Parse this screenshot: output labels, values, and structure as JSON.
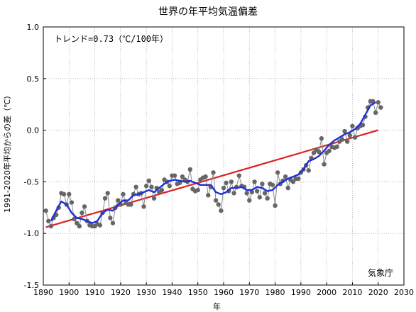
{
  "chart_data": {
    "type": "line",
    "title": "世界の年平均気温偏差",
    "xlabel": "年",
    "ylabel": "1991-2020年平均からの差（℃）",
    "annotation": "トレンド=0.73（℃/100年）",
    "source": "気象庁",
    "xlim": [
      1890,
      2030
    ],
    "ylim": [
      -1.5,
      1.0
    ],
    "xticks": [
      "1890",
      "1900",
      "1910",
      "1920",
      "1930",
      "1940",
      "1950",
      "1960",
      "1970",
      "1980",
      "1990",
      "2000",
      "2010",
      "2020",
      "2030"
    ],
    "yticks": [
      "1.0",
      "0.5",
      "0.0",
      "-0.5",
      "-1.0",
      "-1.5"
    ],
    "grid": true,
    "colors": {
      "annual": "#666666",
      "moving_average": "#1f2fd6",
      "trend": "#e02020"
    },
    "annual": {
      "x": [
        1891,
        1892,
        1893,
        1894,
        1895,
        1896,
        1897,
        1898,
        1899,
        1900,
        1901,
        1902,
        1903,
        1904,
        1905,
        1906,
        1907,
        1908,
        1909,
        1910,
        1911,
        1912,
        1913,
        1914,
        1915,
        1916,
        1917,
        1918,
        1919,
        1920,
        1921,
        1922,
        1923,
        1924,
        1925,
        1926,
        1927,
        1928,
        1929,
        1930,
        1931,
        1932,
        1933,
        1934,
        1935,
        1936,
        1937,
        1938,
        1939,
        1940,
        1941,
        1942,
        1943,
        1944,
        1945,
        1946,
        1947,
        1948,
        1949,
        1950,
        1951,
        1952,
        1953,
        1954,
        1955,
        1956,
        1957,
        1958,
        1959,
        1960,
        1961,
        1962,
        1963,
        1964,
        1965,
        1966,
        1967,
        1968,
        1969,
        1970,
        1971,
        1972,
        1973,
        1974,
        1975,
        1976,
        1977,
        1978,
        1979,
        1980,
        1981,
        1982,
        1983,
        1984,
        1985,
        1986,
        1987,
        1988,
        1989,
        1990,
        1991,
        1992,
        1993,
        1994,
        1995,
        1996,
        1997,
        1998,
        1999,
        2000,
        2001,
        2002,
        2003,
        2004,
        2005,
        2006,
        2007,
        2008,
        2009,
        2010,
        2011,
        2012,
        2013,
        2014,
        2015,
        2016,
        2017,
        2018,
        2019,
        2020,
        2021
      ],
      "y": [
        -0.78,
        -0.88,
        -0.93,
        -0.85,
        -0.82,
        -0.75,
        -0.61,
        -0.62,
        -0.72,
        -0.62,
        -0.7,
        -0.86,
        -0.9,
        -0.93,
        -0.8,
        -0.74,
        -0.88,
        -0.92,
        -0.93,
        -0.93,
        -0.91,
        -0.92,
        -0.8,
        -0.66,
        -0.61,
        -0.85,
        -0.9,
        -0.75,
        -0.68,
        -0.72,
        -0.62,
        -0.7,
        -0.72,
        -0.72,
        -0.62,
        -0.55,
        -0.62,
        -0.61,
        -0.74,
        -0.54,
        -0.49,
        -0.55,
        -0.66,
        -0.56,
        -0.6,
        -0.58,
        -0.48,
        -0.5,
        -0.54,
        -0.44,
        -0.44,
        -0.52,
        -0.51,
        -0.45,
        -0.48,
        -0.5,
        -0.38,
        -0.57,
        -0.59,
        -0.58,
        -0.48,
        -0.46,
        -0.45,
        -0.63,
        -0.55,
        -0.41,
        -0.68,
        -0.72,
        -0.78,
        -0.56,
        -0.51,
        -0.59,
        -0.5,
        -0.61,
        -0.55,
        -0.44,
        -0.54,
        -0.55,
        -0.61,
        -0.68,
        -0.6,
        -0.5,
        -0.59,
        -0.65,
        -0.52,
        -0.61,
        -0.66,
        -0.52,
        -0.53,
        -0.73,
        -0.41,
        -0.52,
        -0.49,
        -0.45,
        -0.56,
        -0.48,
        -0.5,
        -0.47,
        -0.47,
        -0.41,
        -0.38,
        -0.34,
        -0.39,
        -0.27,
        -0.22,
        -0.19,
        -0.21,
        -0.08,
        -0.33,
        -0.22,
        -0.2,
        -0.16,
        -0.17,
        -0.16,
        -0.11,
        -0.09,
        -0.01,
        -0.11,
        -0.05,
        0.04,
        -0.07,
        0.02,
        0.04,
        0.05,
        0.13,
        0.22,
        0.28,
        0.28,
        0.17,
        0.27,
        0.22
      ]
    },
    "moving_average": {
      "x": [
        1893,
        1895,
        1897,
        1899,
        1901,
        1903,
        1905,
        1907,
        1909,
        1911,
        1913,
        1915,
        1917,
        1919,
        1921,
        1923,
        1925,
        1927,
        1929,
        1931,
        1933,
        1935,
        1937,
        1939,
        1941,
        1943,
        1945,
        1947,
        1949,
        1951,
        1953,
        1955,
        1957,
        1959,
        1961,
        1963,
        1965,
        1967,
        1969,
        1971,
        1973,
        1975,
        1977,
        1979,
        1981,
        1983,
        1985,
        1987,
        1989,
        1991,
        1993,
        1995,
        1997,
        1999,
        2001,
        2003,
        2005,
        2007,
        2009,
        2011,
        2013,
        2015,
        2017,
        2019
      ],
      "y": [
        -0.88,
        -0.78,
        -0.69,
        -0.72,
        -0.8,
        -0.85,
        -0.86,
        -0.88,
        -0.9,
        -0.88,
        -0.8,
        -0.77,
        -0.78,
        -0.72,
        -0.68,
        -0.68,
        -0.63,
        -0.62,
        -0.6,
        -0.58,
        -0.6,
        -0.56,
        -0.52,
        -0.49,
        -0.48,
        -0.49,
        -0.5,
        -0.49,
        -0.51,
        -0.53,
        -0.53,
        -0.53,
        -0.6,
        -0.62,
        -0.6,
        -0.56,
        -0.56,
        -0.55,
        -0.58,
        -0.58,
        -0.55,
        -0.56,
        -0.59,
        -0.58,
        -0.53,
        -0.5,
        -0.47,
        -0.45,
        -0.43,
        -0.38,
        -0.3,
        -0.28,
        -0.25,
        -0.2,
        -0.14,
        -0.1,
        -0.07,
        -0.04,
        -0.02,
        0.01,
        0.06,
        0.15,
        0.24,
        0.27
      ]
    },
    "trend": {
      "x": [
        1891,
        2020
      ],
      "y": [
        -0.94,
        0.0
      ]
    }
  }
}
